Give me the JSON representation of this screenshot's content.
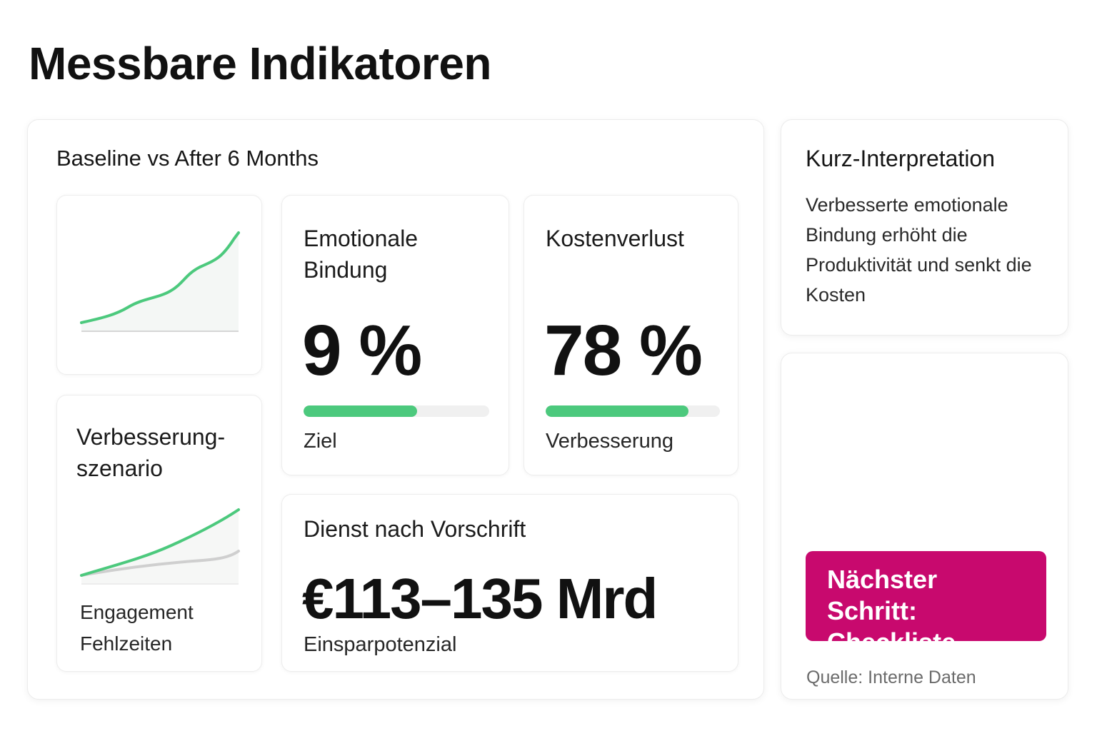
{
  "page": {
    "title": "Messbare Indikatoren"
  },
  "main_panel": {
    "title": "Baseline vs After 6 Months"
  },
  "scenario": {
    "title": "Verbesserung-szenario",
    "legend": [
      "Engagement",
      "Fehlzeiten"
    ]
  },
  "kpis": {
    "bindung": {
      "label": "Emotionale Bindung",
      "value": "9 %",
      "progress": 0.61,
      "caption": "Ziel"
    },
    "kosten": {
      "label": "Kostenverlust",
      "value": "78 %",
      "progress": 0.82,
      "caption": "Verbesserung"
    },
    "dienst": {
      "label": "Dienst nach Vorschrift",
      "value": "€113–135 Mrd",
      "caption": "Einsparpotenzial"
    }
  },
  "interpretation": {
    "title": "Kurz-Interpretation",
    "text": "Verbesserte emotionale Bindung erhöht die Produktivität und senkt die Kosten"
  },
  "cta": {
    "label": "Nächster Schritt: Checkliste",
    "source": "Quelle: Interne Daten"
  },
  "colors": {
    "accent_green": "#4cc97d",
    "cta_magenta": "#c8096e",
    "baseline_gray": "#d0d0d0"
  }
}
